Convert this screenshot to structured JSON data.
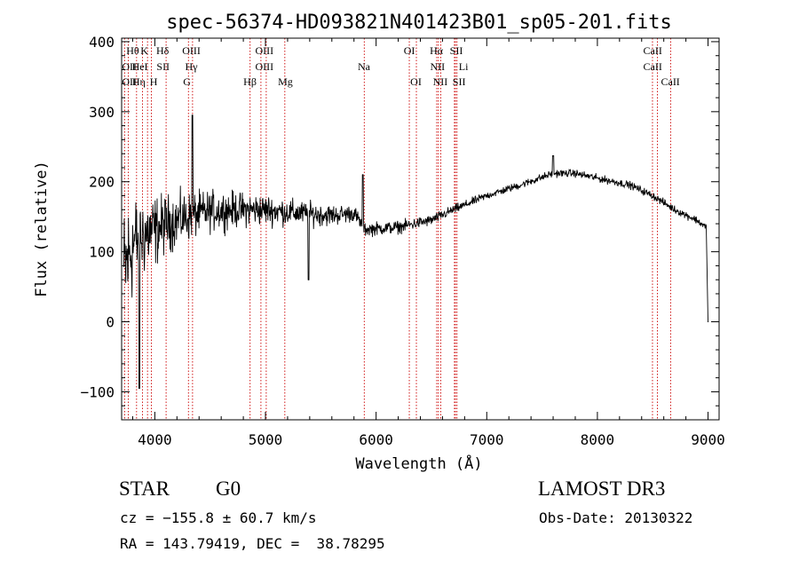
{
  "chart_data": {
    "type": "line",
    "title": "spec-56374-HD093821N401423B01_sp05-201.fits",
    "xlabel": "Wavelength (Å)",
    "ylabel": "Flux (relative)",
    "xlim": [
      3700,
      9100
    ],
    "ylim": [
      -140,
      405
    ],
    "xticks": [
      4000,
      5000,
      6000,
      7000,
      8000,
      9000
    ],
    "yticks": [
      -100,
      0,
      100,
      200,
      300,
      400
    ],
    "line_color": "#000000",
    "marker_color": "#cc0000",
    "series": [
      {
        "name": "flux",
        "continuum": [
          [
            3700,
            60
          ],
          [
            3800,
            110
          ],
          [
            3900,
            125
          ],
          [
            4000,
            130
          ],
          [
            4100,
            140
          ],
          [
            4300,
            150
          ],
          [
            4500,
            158
          ],
          [
            4700,
            160
          ],
          [
            5000,
            160
          ],
          [
            5300,
            155
          ],
          [
            5600,
            152
          ],
          [
            5800,
            155
          ],
          [
            5900,
            132
          ],
          [
            6200,
            135
          ],
          [
            6500,
            145
          ],
          [
            6700,
            160
          ],
          [
            7000,
            180
          ],
          [
            7300,
            195
          ],
          [
            7600,
            212
          ],
          [
            7800,
            212
          ],
          [
            8000,
            205
          ],
          [
            8300,
            195
          ],
          [
            8500,
            180
          ],
          [
            8700,
            160
          ],
          [
            8900,
            145
          ],
          [
            8980,
            135
          ],
          [
            9000,
            130
          ]
        ],
        "noise_levels": [
          [
            3700,
            140
          ],
          [
            3900,
            90
          ],
          [
            4100,
            60
          ],
          [
            4400,
            45
          ],
          [
            4800,
            35
          ],
          [
            5200,
            28
          ],
          [
            5600,
            22
          ],
          [
            5900,
            15
          ],
          [
            6400,
            12
          ],
          [
            6700,
            10
          ],
          [
            7000,
            8
          ],
          [
            8000,
            8
          ],
          [
            9000,
            8
          ]
        ],
        "features": [
          {
            "x": 3860,
            "y": -95
          },
          {
            "x": 4340,
            "y": 295
          },
          {
            "x": 5390,
            "y": 60
          },
          {
            "x": 5880,
            "y": 210
          },
          {
            "x": 7600,
            "y": 237
          },
          {
            "x": 9000,
            "y": 0
          }
        ]
      }
    ],
    "lines": [
      {
        "x": 3727,
        "upper": "OII",
        "lower": "OII"
      },
      {
        "x": 3760,
        "upper": "Hθ",
        "lower": "Hη"
      },
      {
        "x": 3835,
        "upper": "",
        "lower": ""
      },
      {
        "x": 3889,
        "upper": "HeI",
        "lower": "Hη"
      },
      {
        "x": 3934,
        "upper": "K",
        "lower": ""
      },
      {
        "x": 3969,
        "upper": "SII",
        "lower": "H"
      },
      {
        "x": 4102,
        "upper": "Hδ",
        "lower": "SII"
      },
      {
        "x": 4304,
        "upper": "OIII",
        "lower": "G"
      },
      {
        "x": 4341,
        "upper": "Hγ",
        "lower": ""
      },
      {
        "x": 4861,
        "upper": "",
        "lower": "Hβ"
      },
      {
        "x": 4959,
        "upper": "OIII",
        "lower": ""
      },
      {
        "x": 5007,
        "upper": "OIII",
        "lower": ""
      },
      {
        "x": 5175,
        "upper": "",
        "lower": "Mg"
      },
      {
        "x": 5893,
        "upper": "Na",
        "lower": ""
      },
      {
        "x": 6300,
        "upper": "OI",
        "lower": ""
      },
      {
        "x": 6364,
        "upper": "",
        "lower": "OI"
      },
      {
        "x": 6548,
        "upper": "NII",
        "lower": "NII"
      },
      {
        "x": 6563,
        "upper": "Hα",
        "lower": ""
      },
      {
        "x": 6584,
        "upper": "",
        "lower": ""
      },
      {
        "x": 6708,
        "upper": "Li",
        "lower": ""
      },
      {
        "x": 6717,
        "upper": "SII",
        "lower": ""
      },
      {
        "x": 6731,
        "upper": "",
        "lower": "SII"
      },
      {
        "x": 8498,
        "upper": "CaII",
        "lower": ""
      },
      {
        "x": 8542,
        "upper": "CaII",
        "lower": ""
      },
      {
        "x": 8662,
        "upper": "",
        "lower": "CaII"
      }
    ],
    "line_labels": {
      "row1": [
        "Hθ",
        "K",
        "Hδ",
        "OIII",
        "OIII",
        "OI",
        "Hα",
        "SII",
        "CaII"
      ],
      "row2": [
        "OII",
        "HeI",
        "SII",
        "Hγ",
        "OIII",
        "Na",
        "NII",
        "Li",
        "CaII"
      ],
      "row3": [
        "OII",
        "Hη",
        "H",
        "G",
        "Hβ",
        "Mg",
        "OI",
        "NII",
        "SII",
        "CaII"
      ]
    }
  },
  "info": {
    "class": "STAR",
    "subclass": "G0",
    "survey": "LAMOST DR3",
    "cz": "cz = −155.8 ± 60.7 km/s",
    "obs_date": "Obs-Date: 20130322",
    "coords": "RA = 143.79419, DEC =  38.78295"
  }
}
